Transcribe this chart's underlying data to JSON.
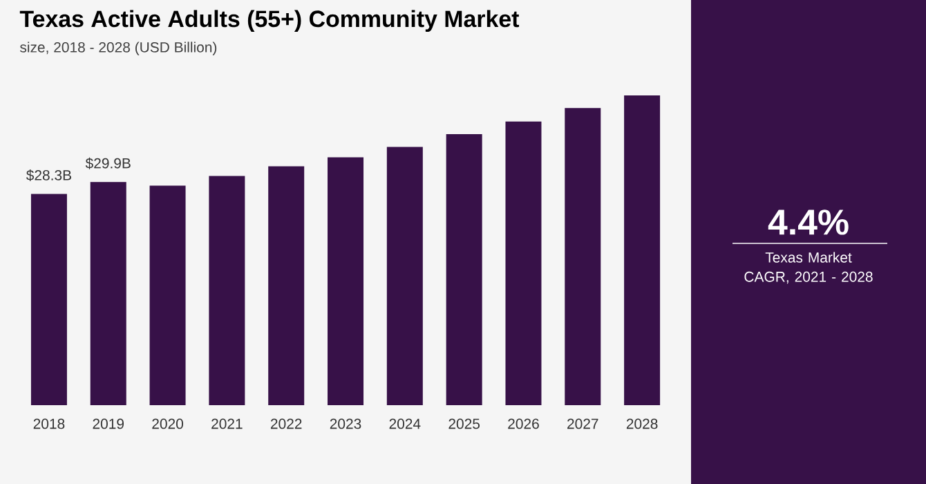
{
  "chart_data": {
    "type": "bar",
    "title": "Texas Active Adults (55+) Community Market",
    "subtitle": "size, 2018 - 2028 (USD Billion)",
    "categories": [
      "2018",
      "2019",
      "2020",
      "2021",
      "2022",
      "2023",
      "2024",
      "2025",
      "2026",
      "2027",
      "2028"
    ],
    "values": [
      28.3,
      29.9,
      29.4,
      30.7,
      32.0,
      33.2,
      34.6,
      36.3,
      38.0,
      39.8,
      41.5
    ],
    "value_labels": [
      "$28.3B",
      "$29.9B",
      null,
      null,
      null,
      null,
      null,
      null,
      null,
      null,
      null
    ],
    "color": "#371148",
    "annotations": [
      "4.4%",
      "Texas Market CAGR, 2021 - 2028"
    ]
  }
}
